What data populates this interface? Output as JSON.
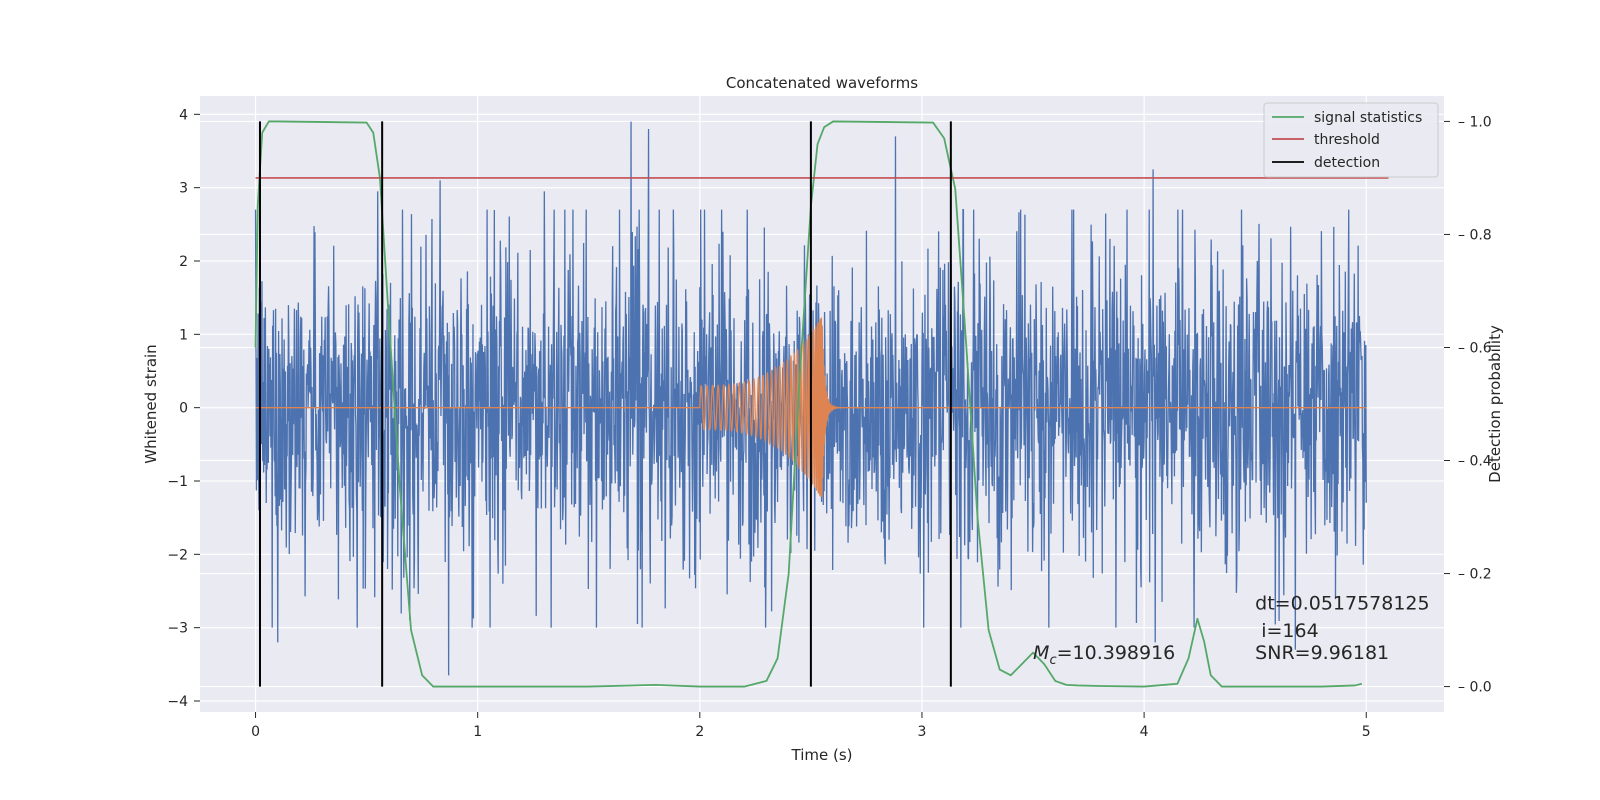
{
  "chart_data": {
    "type": "line",
    "title": "Concatenated waveforms",
    "xlabel": "Time (s)",
    "ylabel": "Whitened strain",
    "y2label": "Detection probability",
    "xlim": [
      -0.25,
      5.35
    ],
    "ylim": [
      -4.15,
      4.25
    ],
    "y2lim": [
      -0.045,
      1.045
    ],
    "xticks": [
      0,
      1,
      2,
      3,
      4,
      5
    ],
    "yticks": [
      -4,
      -3,
      -2,
      -1,
      0,
      1,
      2,
      3,
      4
    ],
    "y2ticks": [
      0.0,
      0.2,
      0.4,
      0.6,
      0.8,
      1.0
    ],
    "grid": true,
    "legend_position": "top-right",
    "legend": [
      {
        "label": "signal statistics",
        "color": "#55a868"
      },
      {
        "label": "threshold",
        "color": "#c44e52"
      },
      {
        "label": "detection",
        "color": "#000000"
      }
    ],
    "series": [
      {
        "kind": "whitened-strain-noise",
        "color": "#4c72b0",
        "x_range": [
          0,
          5
        ],
        "envelope_abs": 3.0,
        "peak_spikes": [
          {
            "x": 0.55,
            "y": 2.95
          },
          {
            "x": 0.83,
            "y": 3.1
          },
          {
            "x": 1.3,
            "y": 2.95
          },
          {
            "x": 1.69,
            "y": 3.9
          },
          {
            "x": 1.77,
            "y": 3.8
          },
          {
            "x": 2.88,
            "y": 3.7
          },
          {
            "x": 4.04,
            "y": 3.25
          },
          {
            "x": 0.1,
            "y": -3.2
          },
          {
            "x": 0.87,
            "y": -3.65
          },
          {
            "x": 1.72,
            "y": -2.95
          },
          {
            "x": 4.05,
            "y": -3.2
          },
          {
            "x": 4.68,
            "y": -3.3
          }
        ]
      },
      {
        "kind": "injected-chirp",
        "color": "#dd8452",
        "x_range": [
          0,
          5
        ],
        "chirp_start": 2.0,
        "merger_time": 2.55,
        "peak_amplitude": 1.25,
        "values_before_start": 0
      },
      {
        "name": "signal statistics",
        "axis": "right",
        "color": "#55a868",
        "x": [
          0.0,
          0.01,
          0.03,
          0.06,
          0.1,
          0.5,
          0.53,
          0.56,
          0.6,
          0.65,
          0.7,
          0.75,
          0.8,
          1.0,
          1.5,
          1.8,
          2.0,
          2.2,
          2.3,
          2.35,
          2.4,
          2.45,
          2.5,
          2.53,
          2.56,
          2.6,
          3.05,
          3.1,
          3.15,
          3.2,
          3.25,
          3.3,
          3.35,
          3.4,
          3.45,
          3.5,
          3.55,
          3.6,
          3.65,
          3.7,
          3.8,
          4.0,
          4.15,
          4.2,
          4.24,
          4.27,
          4.3,
          4.35,
          4.5,
          4.8,
          4.95,
          4.98
        ],
        "y": [
          0.6,
          0.85,
          0.98,
          1.0,
          1.0,
          0.998,
          0.98,
          0.9,
          0.65,
          0.35,
          0.1,
          0.02,
          0.0,
          0.0,
          0.0,
          0.003,
          0.0,
          0.0,
          0.01,
          0.05,
          0.2,
          0.55,
          0.85,
          0.96,
          0.99,
          1.0,
          0.998,
          0.97,
          0.88,
          0.6,
          0.3,
          0.1,
          0.03,
          0.02,
          0.04,
          0.06,
          0.04,
          0.01,
          0.003,
          0.002,
          0.001,
          0.0,
          0.005,
          0.05,
          0.12,
          0.08,
          0.02,
          0.0,
          0.0,
          0.0,
          0.002,
          0.005
        ]
      },
      {
        "name": "threshold",
        "axis": "right",
        "color": "#c44e52",
        "x": [
          0,
          5.1
        ],
        "y": [
          0.9,
          0.9
        ]
      }
    ],
    "detections": {
      "color": "#000000",
      "x": [
        0.02,
        0.57,
        2.5,
        3.13
      ],
      "y2_range": [
        0.0,
        1.0
      ]
    },
    "annotations": [
      {
        "text": "dt=0.0517578125",
        "x": 4.5,
        "y": -2.75
      },
      {
        "text": " i=164",
        "x": 4.5,
        "y": -3.13
      },
      {
        "text": "SNR=9.96181",
        "x": 4.5,
        "y": -3.43
      },
      {
        "text": "=10.398916",
        "prefix": "M",
        "subscript": "c",
        "x": 3.5,
        "y": -3.43
      }
    ]
  }
}
